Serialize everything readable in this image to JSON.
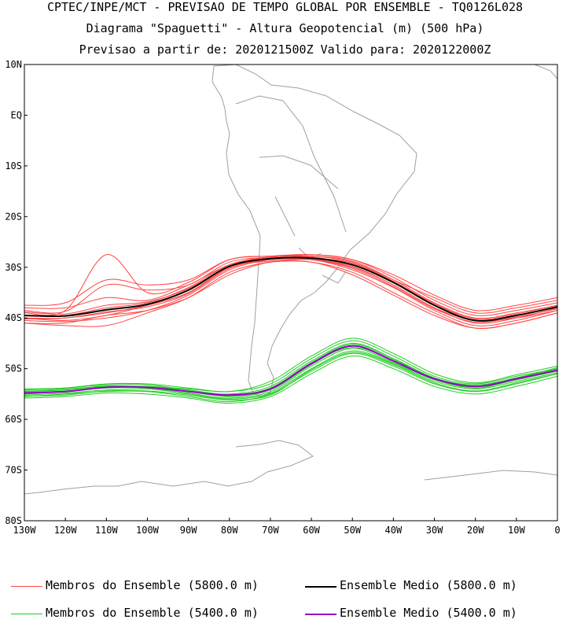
{
  "header": {
    "line1": "CPTEC/INPE/MCT - PREVISAO DE TEMPO GLOBAL POR ENSEMBLE - TQ0126L028",
    "line2": "Diagrama \"Spaguetti\" - Altura Geopotencial (m) (500 hPa)",
    "line3": "Previsao a partir de: 2020121500Z  Valido para: 2020122000Z"
  },
  "legend": {
    "members_5800": "Membros do Ensemble (5800.0 m)",
    "mean_5800": "Ensemble Medio (5800.0 m)",
    "members_5400": "Membros do Ensemble (5400.0 m)",
    "mean_5400": "Ensemble Medio (5400.0 m)"
  },
  "colors": {
    "red": "#ff4444",
    "green": "#22cc22",
    "black": "#000000",
    "purple": "#9900cc",
    "coast": "#a0a0a0"
  },
  "chart_data": {
    "type": "line",
    "title": "Diagrama \"Spaguetti\" - Altura Geopotencial (m) (500 hPa)",
    "xlim": [
      -130,
      0
    ],
    "ylim": [
      -80,
      10
    ],
    "x_ticks": [
      {
        "v": -130,
        "label": "130W"
      },
      {
        "v": -120,
        "label": "120W"
      },
      {
        "v": -110,
        "label": "110W"
      },
      {
        "v": -100,
        "label": "100W"
      },
      {
        "v": -90,
        "label": "90W"
      },
      {
        "v": -80,
        "label": "80W"
      },
      {
        "v": -70,
        "label": "70W"
      },
      {
        "v": -60,
        "label": "60W"
      },
      {
        "v": -50,
        "label": "50W"
      },
      {
        "v": -40,
        "label": "40W"
      },
      {
        "v": -30,
        "label": "30W"
      },
      {
        "v": -20,
        "label": "20W"
      },
      {
        "v": -10,
        "label": "10W"
      },
      {
        "v": 0,
        "label": "0"
      }
    ],
    "y_ticks": [
      {
        "v": 10,
        "label": "10N"
      },
      {
        "v": 0,
        "label": "EQ"
      },
      {
        "v": -10,
        "label": "10S"
      },
      {
        "v": -20,
        "label": "20S"
      },
      {
        "v": -30,
        "label": "30S"
      },
      {
        "v": -40,
        "label": "40S"
      },
      {
        "v": -50,
        "label": "50S"
      },
      {
        "v": -60,
        "label": "60S"
      },
      {
        "v": -70,
        "label": "70S"
      },
      {
        "v": -80,
        "label": "80S"
      }
    ],
    "x": [
      -130,
      -120,
      -110,
      -100,
      -90,
      -80,
      -70,
      -60,
      -50,
      -40,
      -30,
      -20,
      -10,
      0
    ],
    "series": [
      {
        "name": "Ensemble Medio (5800.0 m)",
        "role": "mean",
        "color": "#000000",
        "values": [
          -39.5,
          -39.6,
          -38.4,
          -37.3,
          -34.5,
          -29.8,
          -28.3,
          -28.2,
          -29.5,
          -33.0,
          -37.5,
          -40.5,
          -39.5,
          -37.8
        ]
      },
      {
        "name": "Membros do Ensemble (5800.0 m)",
        "role": "members",
        "color": "#ff4444",
        "members": [
          [
            -38.5,
            -38.7,
            -33.5,
            -34.5,
            -33.5,
            -29.0,
            -28.0,
            -27.5,
            -28.5,
            -32.0,
            -36.5,
            -39.5,
            -38.5,
            -37.0
          ],
          [
            -40.5,
            -40.7,
            -40.0,
            -38.5,
            -35.5,
            -30.5,
            -28.5,
            -28.5,
            -30.5,
            -34.0,
            -38.5,
            -41.5,
            -40.5,
            -38.5
          ],
          [
            -39.0,
            -38.5,
            -27.5,
            -35.0,
            -33.0,
            -28.5,
            -27.8,
            -27.8,
            -28.8,
            -32.5,
            -37.0,
            -40.0,
            -39.0,
            -37.5
          ],
          [
            -41.0,
            -41.5,
            -41.5,
            -39.0,
            -36.0,
            -31.0,
            -29.0,
            -29.0,
            -31.0,
            -35.0,
            -39.0,
            -42.0,
            -41.0,
            -39.0
          ],
          [
            -38.0,
            -38.0,
            -36.0,
            -36.5,
            -33.5,
            -29.5,
            -28.0,
            -27.8,
            -29.0,
            -32.5,
            -36.0,
            -39.0,
            -38.0,
            -36.5
          ],
          [
            -40.0,
            -40.0,
            -39.0,
            -37.5,
            -35.0,
            -30.0,
            -28.5,
            -28.5,
            -30.0,
            -33.5,
            -38.0,
            -41.0,
            -40.0,
            -38.0
          ],
          [
            -37.5,
            -37.0,
            -32.5,
            -33.5,
            -32.5,
            -28.5,
            -27.8,
            -27.5,
            -28.5,
            -31.5,
            -35.5,
            -38.5,
            -37.5,
            -36.0
          ],
          [
            -41.0,
            -41.0,
            -39.5,
            -38.5,
            -36.0,
            -31.5,
            -29.0,
            -29.0,
            -31.5,
            -35.5,
            -39.5,
            -42.0,
            -41.0,
            -39.0
          ],
          [
            -39.5,
            -39.5,
            -38.0,
            -37.0,
            -34.0,
            -29.5,
            -28.0,
            -28.0,
            -29.5,
            -33.0,
            -37.5,
            -40.5,
            -39.5,
            -37.8
          ],
          [
            -40.0,
            -40.5,
            -39.5,
            -37.5,
            -35.0,
            -30.0,
            -28.8,
            -28.5,
            -29.8,
            -33.5,
            -38.0,
            -40.5,
            -40.0,
            -38.5
          ],
          [
            -38.8,
            -39.2,
            -37.5,
            -36.8,
            -34.2,
            -29.8,
            -28.2,
            -28.2,
            -29.2,
            -32.8,
            -37.2,
            -40.2,
            -39.2,
            -37.5
          ],
          [
            -40.2,
            -40.0,
            -38.8,
            -37.8,
            -35.2,
            -30.2,
            -28.5,
            -28.5,
            -30.2,
            -33.8,
            -38.2,
            -40.8,
            -39.8,
            -38.2
          ]
        ]
      },
      {
        "name": "Ensemble Medio (5400.0 m)",
        "role": "mean",
        "color": "#9900cc",
        "values": [
          -54.8,
          -54.5,
          -53.7,
          -53.7,
          -54.5,
          -55.2,
          -54.0,
          -49.0,
          -45.5,
          -48.5,
          -52.0,
          -53.5,
          -52.0,
          -50.3
        ]
      },
      {
        "name": "Membros do Ensemble (5400.0 m)",
        "role": "members",
        "color": "#22cc22",
        "members": [
          [
            -54.5,
            -54.0,
            -53.5,
            -53.5,
            -54.0,
            -54.5,
            -53.0,
            -48.0,
            -44.5,
            -47.5,
            -51.5,
            -53.0,
            -51.5,
            -50.0
          ],
          [
            -55.5,
            -55.0,
            -54.5,
            -54.5,
            -55.5,
            -56.5,
            -55.0,
            -50.5,
            -47.0,
            -49.5,
            -53.0,
            -54.5,
            -53.0,
            -51.0
          ],
          [
            -54.0,
            -53.8,
            -53.0,
            -53.0,
            -53.8,
            -54.5,
            -52.5,
            -47.5,
            -44.0,
            -47.0,
            -51.0,
            -52.8,
            -51.2,
            -49.5
          ],
          [
            -55.8,
            -55.5,
            -54.8,
            -55.0,
            -55.8,
            -56.8,
            -55.5,
            -51.0,
            -47.5,
            -50.0,
            -53.5,
            -55.0,
            -53.5,
            -51.5
          ],
          [
            -54.8,
            -54.5,
            -53.5,
            -53.8,
            -54.5,
            -55.5,
            -54.2,
            -49.2,
            -45.5,
            -48.5,
            -52.0,
            -53.5,
            -52.0,
            -50.2
          ],
          [
            -55.2,
            -54.8,
            -54.2,
            -54.0,
            -55.0,
            -56.0,
            -54.8,
            -50.0,
            -46.5,
            -49.0,
            -52.5,
            -54.0,
            -52.5,
            -50.8
          ],
          [
            -54.2,
            -53.8,
            -53.2,
            -53.2,
            -54.2,
            -55.0,
            -53.5,
            -48.5,
            -45.0,
            -48.0,
            -51.8,
            -53.2,
            -51.8,
            -49.8
          ],
          [
            -55.0,
            -54.5,
            -53.8,
            -53.8,
            -54.8,
            -55.8,
            -54.5,
            -49.5,
            -46.0,
            -48.8,
            -52.2,
            -53.8,
            -52.2,
            -50.5
          ],
          [
            -54.6,
            -54.4,
            -53.6,
            -53.5,
            -54.4,
            -55.2,
            -53.8,
            -48.8,
            -45.2,
            -48.2,
            -51.8,
            -53.4,
            -51.8,
            -50.0
          ],
          [
            -55.4,
            -55.2,
            -54.4,
            -54.4,
            -55.2,
            -56.2,
            -55.2,
            -50.2,
            -46.8,
            -49.2,
            -52.8,
            -54.4,
            -52.8,
            -51.0
          ],
          [
            -54.4,
            -54.2,
            -53.4,
            -53.6,
            -54.2,
            -55.4,
            -54.0,
            -49.0,
            -45.8,
            -48.4,
            -52.2,
            -53.6,
            -52.2,
            -50.4
          ]
        ]
      }
    ]
  }
}
